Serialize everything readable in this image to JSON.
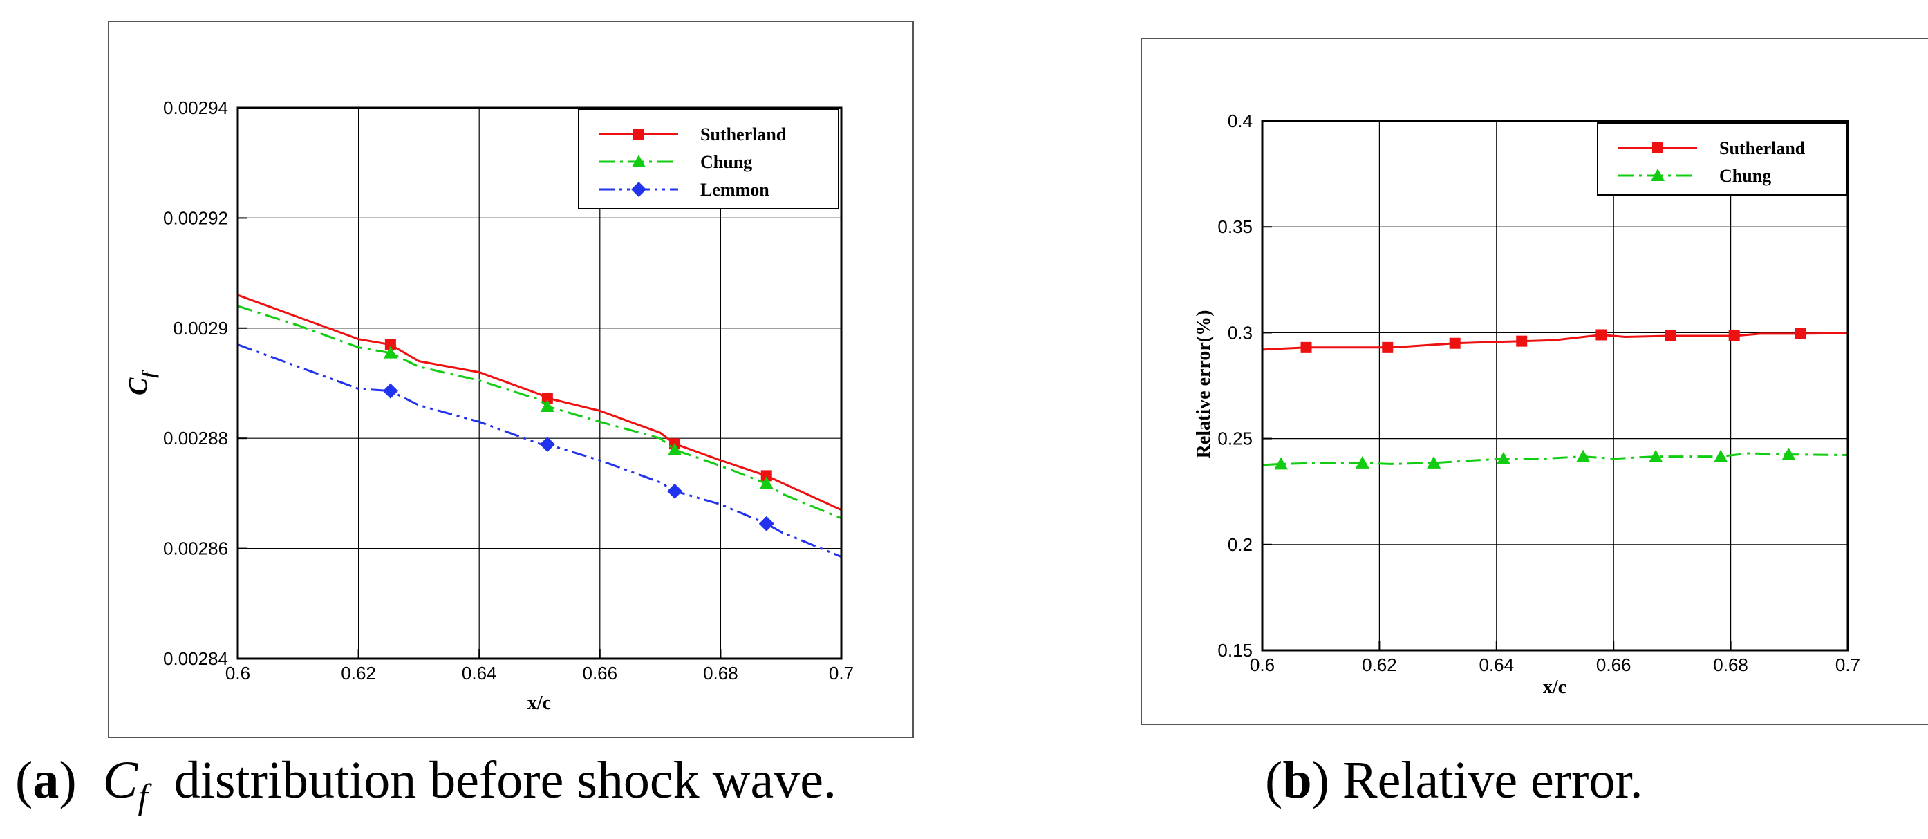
{
  "colors": {
    "Sutherland": "#ee1111",
    "Chung": "#11cc11",
    "Lemmon": "#2233ee",
    "grid": "#000000"
  },
  "captions": {
    "a": {
      "letter": "a",
      "symbol_main": "C",
      "symbol_sub": "f",
      "text": "distribution before shock wave."
    },
    "b": {
      "letter": "b",
      "text": "Relative error."
    }
  },
  "chart_data": [
    {
      "type": "line",
      "title": "",
      "xlabel": "x/c",
      "ylabel": "C",
      "ylabel_sub": "f",
      "xlim": [
        0.6,
        0.7
      ],
      "ylim": [
        0.00284,
        0.00294
      ],
      "xticks": [
        "0.6",
        "0.62",
        "0.64",
        "0.66",
        "0.68",
        "0.7"
      ],
      "yticks": [
        "0.00284",
        "0.00286",
        "0.00288",
        "0.0029",
        "0.00292",
        "0.00294"
      ],
      "grid": true,
      "legend_position": "top-right",
      "series": [
        {
          "name": "Sutherland",
          "marker": "square",
          "dash": "solid",
          "x": [
            0.6,
            0.61,
            0.62,
            0.6253,
            0.63,
            0.64,
            0.65,
            0.6513,
            0.66,
            0.67,
            0.6724,
            0.68,
            0.6876,
            0.69,
            0.7
          ],
          "y": [
            0.002906,
            0.002902,
            0.002898,
            0.002897,
            0.002894,
            0.002892,
            0.002888,
            0.0028873,
            0.002885,
            0.002881,
            0.002879,
            0.002876,
            0.0028732,
            0.002872,
            0.002867
          ],
          "marker_x": [
            0.6253,
            0.6513,
            0.6724,
            0.6876
          ],
          "marker_y": [
            0.002897,
            0.0028873,
            0.002879,
            0.0028732
          ]
        },
        {
          "name": "Chung",
          "marker": "triangle",
          "dash": "dashdot",
          "x": [
            0.6,
            0.61,
            0.62,
            0.6253,
            0.63,
            0.64,
            0.65,
            0.6513,
            0.66,
            0.67,
            0.6724,
            0.68,
            0.6876,
            0.69,
            0.7
          ],
          "y": [
            0.002904,
            0.0029005,
            0.0028965,
            0.0028955,
            0.002893,
            0.0028905,
            0.002887,
            0.0028858,
            0.002883,
            0.00288,
            0.0028779,
            0.002875,
            0.0028718,
            0.00287,
            0.0028655
          ],
          "marker_x": [
            0.6253,
            0.6513,
            0.6724,
            0.6876
          ],
          "marker_y": [
            0.0028955,
            0.0028858,
            0.0028779,
            0.0028718
          ]
        },
        {
          "name": "Lemmon",
          "marker": "diamond",
          "dash": "dashdotdot",
          "x": [
            0.6,
            0.61,
            0.62,
            0.6253,
            0.63,
            0.64,
            0.65,
            0.6513,
            0.66,
            0.67,
            0.6724,
            0.68,
            0.6876,
            0.69,
            0.7
          ],
          "y": [
            0.002897,
            0.002893,
            0.002889,
            0.0028886,
            0.002886,
            0.002883,
            0.002879,
            0.0028789,
            0.002876,
            0.002872,
            0.0028704,
            0.002868,
            0.0028645,
            0.002863,
            0.0028585
          ],
          "marker_x": [
            0.6253,
            0.6513,
            0.6724,
            0.6876
          ],
          "marker_y": [
            0.0028886,
            0.0028789,
            0.0028704,
            0.0028645
          ]
        }
      ]
    },
    {
      "type": "line",
      "title": "",
      "xlabel": "x/c",
      "ylabel": "Relative error(%)",
      "xlim": [
        0.6,
        0.7
      ],
      "ylim": [
        0.15,
        0.4
      ],
      "xticks": [
        "0.6",
        "0.62",
        "0.64",
        "0.66",
        "0.68",
        "0.7"
      ],
      "yticks": [
        "0.15",
        "0.2",
        "0.25",
        "0.3",
        "0.35",
        "0.4"
      ],
      "grid": true,
      "legend_position": "top-right",
      "series": [
        {
          "name": "Sutherland",
          "marker": "square",
          "dash": "solid",
          "x": [
            0.6,
            0.6075,
            0.612,
            0.6214,
            0.625,
            0.6329,
            0.638,
            0.6443,
            0.65,
            0.6579,
            0.662,
            0.6697,
            0.675,
            0.6806,
            0.685,
            0.6919,
            0.7
          ],
          "y": [
            0.292,
            0.293,
            0.293,
            0.293,
            0.2935,
            0.295,
            0.2955,
            0.296,
            0.2965,
            0.299,
            0.298,
            0.2985,
            0.2985,
            0.2985,
            0.2995,
            0.2995,
            0.2998
          ],
          "marker_x": [
            0.6075,
            0.6214,
            0.6329,
            0.6443,
            0.6579,
            0.6697,
            0.6806,
            0.6919
          ],
          "marker_y": [
            0.293,
            0.293,
            0.295,
            0.296,
            0.299,
            0.2985,
            0.2985,
            0.2995
          ]
        },
        {
          "name": "Chung",
          "marker": "triangle",
          "dash": "dashdot",
          "x": [
            0.6,
            0.6032,
            0.61,
            0.6171,
            0.622,
            0.6293,
            0.635,
            0.6412,
            0.648,
            0.6548,
            0.66,
            0.6672,
            0.673,
            0.6783,
            0.683,
            0.6899,
            0.7
          ],
          "y": [
            0.2375,
            0.238,
            0.2385,
            0.2385,
            0.238,
            0.2385,
            0.2395,
            0.2405,
            0.2405,
            0.2415,
            0.2405,
            0.2415,
            0.2415,
            0.2415,
            0.243,
            0.2425,
            0.2422
          ],
          "marker_x": [
            0.6032,
            0.6171,
            0.6293,
            0.6412,
            0.6548,
            0.6672,
            0.6783,
            0.6899
          ],
          "marker_y": [
            0.238,
            0.2385,
            0.2385,
            0.2405,
            0.2415,
            0.2415,
            0.2415,
            0.2425
          ]
        }
      ]
    }
  ]
}
